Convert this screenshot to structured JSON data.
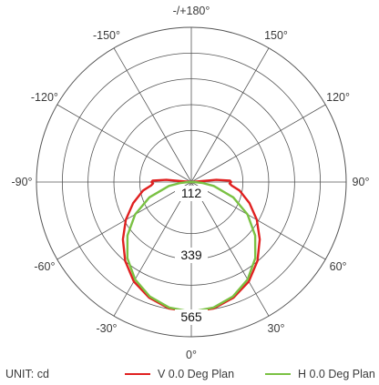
{
  "chart_data": {
    "type": "polar",
    "unit_label": "UNIT: cd",
    "angle_labels": [
      "0°",
      "30°",
      "60°",
      "90°",
      "120°",
      "150°",
      "-/+180°",
      "-150°",
      "-120°",
      "-90°",
      "-60°",
      "-30°"
    ],
    "ring_values": [
      112,
      339,
      565
    ],
    "ring_labels": [
      "112",
      "339",
      "565"
    ],
    "max_value": 680,
    "series": [
      {
        "name": "V 0.0 Deg Plan",
        "color": "#e02020",
        "angles": [
          0,
          10,
          20,
          30,
          40,
          50,
          60,
          70,
          80,
          85,
          88,
          90,
          92,
          95,
          100,
          -100,
          -95,
          -92,
          -90,
          -88,
          -85,
          -80,
          -70,
          -60,
          -50,
          -40,
          -30,
          -20,
          -10
        ],
        "values": [
          570,
          564,
          541,
          505,
          452,
          392,
          332,
          272,
          215,
          178,
          168,
          175,
          170,
          110,
          0,
          0,
          110,
          170,
          175,
          168,
          178,
          215,
          272,
          332,
          392,
          452,
          505,
          541,
          564
        ]
      },
      {
        "name": "H 0.0 Deg Plan",
        "color": "#7ac143",
        "angles": [
          0,
          10,
          20,
          30,
          40,
          50,
          60,
          70,
          80,
          85,
          90,
          95,
          -95,
          -90,
          -85,
          -80,
          -70,
          -60,
          -50,
          -40,
          -30,
          -20,
          -10
        ],
        "values": [
          570,
          560,
          535,
          494,
          437,
          366,
          285,
          196,
          100,
          50,
          12,
          0,
          0,
          12,
          50,
          100,
          196,
          285,
          366,
          437,
          494,
          535,
          560
        ]
      }
    ]
  },
  "legend": {
    "unit": "UNIT: cd",
    "v_label": "V 0.0 Deg Plan",
    "h_label": "H 0.0 Deg Plan",
    "v_color": "#e02020",
    "h_color": "#7ac143"
  }
}
